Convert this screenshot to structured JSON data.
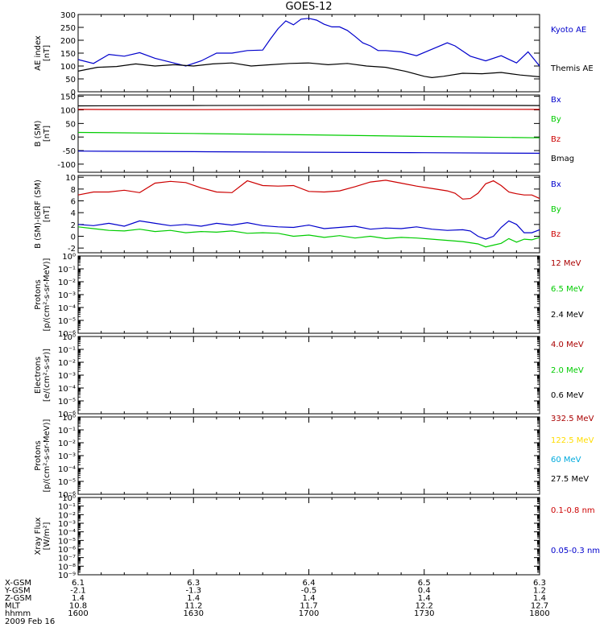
{
  "chart_data": [
    {
      "type": "line",
      "title": "GOES-12",
      "ylabel": [
        "AE index",
        "[nT]"
      ],
      "ylim": [
        0,
        300
      ],
      "yticks": [
        0,
        50,
        100,
        150,
        200,
        250,
        300
      ],
      "ytick_labels": [
        "0",
        "50",
        "100",
        "150",
        "200",
        "250",
        "300"
      ],
      "xlim": [
        0,
        120
      ],
      "series": [
        {
          "name": "Kyoto AE",
          "color": "#0000cc",
          "x": [
            0,
            4,
            8,
            12,
            16,
            20,
            24,
            28,
            32,
            36,
            40,
            44,
            48,
            50,
            52,
            54,
            56,
            58,
            60,
            62,
            64,
            66,
            68,
            70,
            72,
            74,
            76,
            78,
            80,
            84,
            88,
            92,
            96,
            98,
            102,
            106,
            110,
            114,
            117,
            120
          ],
          "y": [
            125,
            110,
            145,
            138,
            152,
            130,
            115,
            100,
            120,
            150,
            150,
            160,
            162,
            205,
            245,
            275,
            260,
            282,
            285,
            278,
            262,
            252,
            252,
            238,
            215,
            190,
            178,
            160,
            160,
            155,
            140,
            165,
            190,
            178,
            138,
            120,
            140,
            112,
            155,
            100
          ]
        },
        {
          "name": "Themis AE",
          "color": "#000000",
          "x": [
            0,
            5,
            10,
            15,
            20,
            25,
            30,
            35,
            40,
            45,
            50,
            55,
            60,
            65,
            70,
            75,
            80,
            85,
            90,
            92,
            95,
            100,
            105,
            110,
            115,
            120
          ],
          "y": [
            80,
            95,
            98,
            108,
            100,
            105,
            100,
            108,
            112,
            100,
            105,
            110,
            112,
            105,
            110,
            100,
            95,
            80,
            60,
            55,
            60,
            72,
            70,
            75,
            65,
            58
          ]
        }
      ]
    },
    {
      "type": "line",
      "ylabel": [
        "B (SM)",
        "[nT]"
      ],
      "ylim": [
        -130,
        155
      ],
      "yticks": [
        -100,
        -50,
        0,
        50,
        100,
        150
      ],
      "ytick_labels": [
        "-100",
        "-50",
        "0",
        "50",
        "100",
        "150"
      ],
      "xlim": [
        0,
        120
      ],
      "series": [
        {
          "name": "Bx",
          "color": "#0000cc",
          "x": [
            0,
            30,
            60,
            90,
            120
          ],
          "y": [
            -52,
            -54,
            -56,
            -58,
            -60
          ]
        },
        {
          "name": "By",
          "color": "#00cc00",
          "x": [
            0,
            30,
            60,
            90,
            120
          ],
          "y": [
            17,
            13,
            8,
            2,
            -3
          ]
        },
        {
          "name": "Bz",
          "color": "#cc0000",
          "x": [
            0,
            30,
            60,
            90,
            120
          ],
          "y": [
            102,
            101,
            102,
            103,
            102
          ]
        },
        {
          "name": "Bmag",
          "color": "#000000",
          "x": [
            0,
            30,
            60,
            90,
            120
          ],
          "y": [
            115,
            116,
            117,
            117,
            116
          ]
        }
      ]
    },
    {
      "type": "line",
      "ylabel": [
        "B (SM)-IGRF (SM)",
        "[nT]"
      ],
      "ylim": [
        -2.8,
        10.3
      ],
      "yticks": [
        -2,
        0,
        2,
        4,
        6,
        8,
        10
      ],
      "ytick_labels": [
        "-2",
        "0",
        "2",
        "4",
        "6",
        "8",
        "10"
      ],
      "xlim": [
        0,
        120
      ],
      "series": [
        {
          "name": "Bx",
          "color": "#0000cc",
          "x": [
            0,
            4,
            8,
            12,
            16,
            20,
            24,
            28,
            32,
            36,
            40,
            44,
            48,
            52,
            56,
            60,
            64,
            68,
            72,
            76,
            80,
            84,
            88,
            92,
            96,
            100,
            102,
            104,
            106,
            108,
            110,
            112,
            114,
            116,
            118,
            120
          ],
          "y": [
            2.0,
            1.8,
            2.2,
            1.7,
            2.6,
            2.2,
            1.8,
            2.0,
            1.7,
            2.2,
            1.9,
            2.3,
            1.8,
            1.6,
            1.5,
            1.9,
            1.3,
            1.5,
            1.7,
            1.2,
            1.4,
            1.3,
            1.6,
            1.2,
            1.0,
            1.1,
            0.9,
            0.0,
            -0.5,
            0.0,
            1.5,
            2.6,
            2.0,
            0.6,
            0.6,
            1.1
          ]
        },
        {
          "name": "By",
          "color": "#00cc00",
          "x": [
            0,
            4,
            8,
            12,
            16,
            20,
            24,
            28,
            32,
            36,
            40,
            44,
            48,
            52,
            56,
            60,
            64,
            68,
            72,
            76,
            80,
            84,
            88,
            92,
            96,
            100,
            104,
            106,
            108,
            110,
            112,
            114,
            116,
            118,
            120
          ],
          "y": [
            1.6,
            1.3,
            1.0,
            0.9,
            1.2,
            0.8,
            1.0,
            0.6,
            0.8,
            0.7,
            0.9,
            0.5,
            0.6,
            0.5,
            0.0,
            0.2,
            -0.2,
            0.1,
            -0.3,
            0.0,
            -0.4,
            -0.2,
            -0.3,
            -0.5,
            -0.7,
            -0.9,
            -1.3,
            -1.8,
            -1.5,
            -1.2,
            -0.4,
            -1.0,
            -0.5,
            -0.6,
            -0.2
          ]
        },
        {
          "name": "Bz",
          "color": "#cc0000",
          "x": [
            0,
            4,
            8,
            12,
            16,
            20,
            24,
            28,
            32,
            36,
            40,
            44,
            48,
            52,
            56,
            60,
            64,
            68,
            72,
            76,
            80,
            84,
            88,
            92,
            96,
            98,
            100,
            102,
            104,
            106,
            108,
            110,
            112,
            114,
            116,
            118,
            120
          ],
          "y": [
            7.0,
            7.5,
            7.5,
            7.8,
            7.4,
            9.0,
            9.3,
            9.1,
            8.2,
            7.5,
            7.4,
            9.4,
            8.6,
            8.5,
            8.6,
            7.6,
            7.5,
            7.7,
            8.4,
            9.2,
            9.5,
            9.0,
            8.5,
            8.1,
            7.7,
            7.3,
            6.3,
            6.4,
            7.3,
            8.9,
            9.4,
            8.6,
            7.5,
            7.2,
            7.0,
            7.0,
            6.4
          ]
        }
      ]
    },
    {
      "type": "line",
      "ylabel": [
        "Protons",
        "[p/(cm²-s-sr-MeV)]"
      ],
      "yscale": "log",
      "ylim_exp": [
        -6,
        0
      ],
      "ytick_labels": [
        "10⁰",
        "10⁻¹",
        "10⁻²",
        "10⁻³",
        "10⁻⁴",
        "10⁻⁵",
        "10⁻⁶"
      ],
      "xlim": [
        0,
        120
      ],
      "series": [
        {
          "name": "12 MeV",
          "color": "#aa0000",
          "values": []
        },
        {
          "name": "6.5 MeV",
          "color": "#00cc00",
          "values": []
        },
        {
          "name": "2.4 MeV",
          "color": "#000000",
          "values": []
        }
      ]
    },
    {
      "type": "line",
      "ylabel": [
        "Electrons",
        "[e/(cm²-s-sr)]"
      ],
      "yscale": "log",
      "ylim_exp": [
        -6,
        0
      ],
      "ytick_labels": [
        "10⁰",
        "10⁻¹",
        "10⁻²",
        "10⁻³",
        "10⁻⁴",
        "10⁻⁵",
        "10⁻⁶"
      ],
      "xlim": [
        0,
        120
      ],
      "series": [
        {
          "name": "4.0 MeV",
          "color": "#aa0000",
          "values": []
        },
        {
          "name": "2.0 MeV",
          "color": "#00cc00",
          "values": []
        },
        {
          "name": "0.6 MeV",
          "color": "#000000",
          "values": []
        }
      ]
    },
    {
      "type": "line",
      "ylabel": [
        "Protons",
        "[p/(cm²-s-sr-MeV)]"
      ],
      "yscale": "log",
      "ylim_exp": [
        -6,
        0
      ],
      "ytick_labels": [
        "10⁰",
        "10⁻¹",
        "10⁻²",
        "10⁻³",
        "10⁻⁴",
        "10⁻⁵",
        "10⁻⁶"
      ],
      "xlim": [
        0,
        120
      ],
      "series": [
        {
          "name": "332.5 MeV",
          "color": "#aa0000",
          "values": []
        },
        {
          "name": "122.5 MeV",
          "color": "#ffdd00",
          "values": []
        },
        {
          "name": "60 MeV",
          "color": "#00aadd",
          "values": []
        },
        {
          "name": "27.5 MeV",
          "color": "#000000",
          "values": []
        }
      ]
    },
    {
      "type": "line",
      "ylabel": [
        "Xray Flux",
        "[W/m²]"
      ],
      "yscale": "log",
      "ylim_exp": [
        -9,
        0
      ],
      "ytick_labels": [
        "10⁰",
        "10⁻¹",
        "10⁻²",
        "10⁻³",
        "10⁻⁴",
        "10⁻⁵",
        "10⁻⁶",
        "10⁻⁷",
        "10⁻⁸",
        "10⁻⁹"
      ],
      "xlim": [
        0,
        120
      ],
      "series": [
        {
          "name": "0.1-0.8 nm",
          "color": "#cc0000",
          "values": []
        },
        {
          "name": "0.05-0.3 nm",
          "color": "#0000cc",
          "values": []
        }
      ]
    }
  ],
  "ephemeris": {
    "date": "2009 Feb 16",
    "x_positions": [
      0,
      30,
      60,
      90,
      120
    ],
    "rows": [
      {
        "label": "X-GSM",
        "values": [
          "6.1",
          "6.3",
          "6.4",
          "6.5",
          "6.3"
        ]
      },
      {
        "label": "Y-GSM",
        "values": [
          "-2.1",
          "-1.3",
          "-0.5",
          "0.4",
          "1.2"
        ]
      },
      {
        "label": "Z-GSM",
        "values": [
          "1.4",
          "1.4",
          "1.4",
          "1.4",
          "1.4"
        ]
      },
      {
        "label": "MLT",
        "values": [
          "10.8",
          "11.2",
          "11.7",
          "12.2",
          "12.7"
        ]
      },
      {
        "label": "hhmm",
        "values": [
          "1600",
          "1630",
          "1700",
          "1730",
          "1800"
        ]
      }
    ]
  }
}
